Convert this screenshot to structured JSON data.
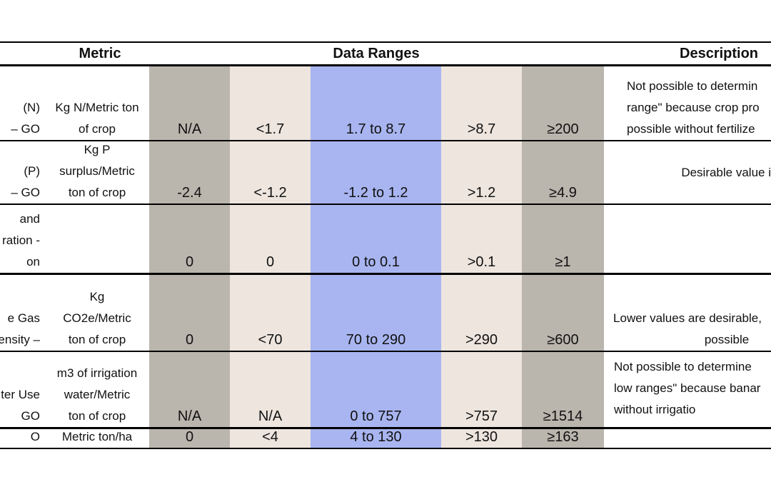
{
  "colors": {
    "dark_gray": "#bab5ad",
    "beige": "#ede5de",
    "blue": "#a8b5f0"
  },
  "headers": {
    "metric": "Metric",
    "data_ranges": "Data Ranges",
    "description": "Description"
  },
  "rows": [
    {
      "name": [
        "(N)",
        "– GO"
      ],
      "unit": [
        "Kg N/Metric ton",
        "of crop"
      ],
      "values": [
        "N/A",
        "<1.7",
        "1.7 to 8.7",
        ">8.7",
        "≥200"
      ],
      "desc": [
        "Not possible to determin",
        "range\" because crop pro",
        "possible without fertilize"
      ]
    },
    {
      "name": [
        "(P)",
        "– GO"
      ],
      "unit": [
        "Kg P",
        "surplus/Metric",
        "ton of crop"
      ],
      "values": [
        "-2.4",
        "<-1.2",
        "-1.2 to 1.2",
        ">1.2",
        "≥4.9"
      ],
      "desc": [
        "Desirable value i"
      ]
    },
    {
      "name": [
        "and",
        "ration -",
        "on"
      ],
      "unit": [],
      "values": [
        "0",
        "0",
        "0 to 0.1",
        ">0.1",
        "≥1"
      ],
      "desc": []
    },
    {
      "name": [
        "e Gas",
        "ensity –"
      ],
      "unit": [
        "Kg",
        "CO2e/Metric",
        "ton of crop"
      ],
      "values": [
        "0",
        "<70",
        "70 to 290",
        ">290",
        "≥600"
      ],
      "desc": [
        "Lower values are desirable,",
        "possible"
      ]
    },
    {
      "name": [
        "ter Use",
        "GO"
      ],
      "unit": [
        "m3 of irrigation",
        "water/Metric",
        "ton of crop"
      ],
      "values": [
        "N/A",
        "N/A",
        "0 to 757",
        ">757",
        "≥1514"
      ],
      "desc": [
        "Not possible to determine",
        "low ranges\" because banar",
        "without irrigatio"
      ]
    },
    {
      "name": [
        "O"
      ],
      "unit": [
        "Metric ton/ha"
      ],
      "values": [
        "0",
        "<4",
        "4  to 130",
        ">130",
        "≥163"
      ],
      "desc": []
    }
  ]
}
